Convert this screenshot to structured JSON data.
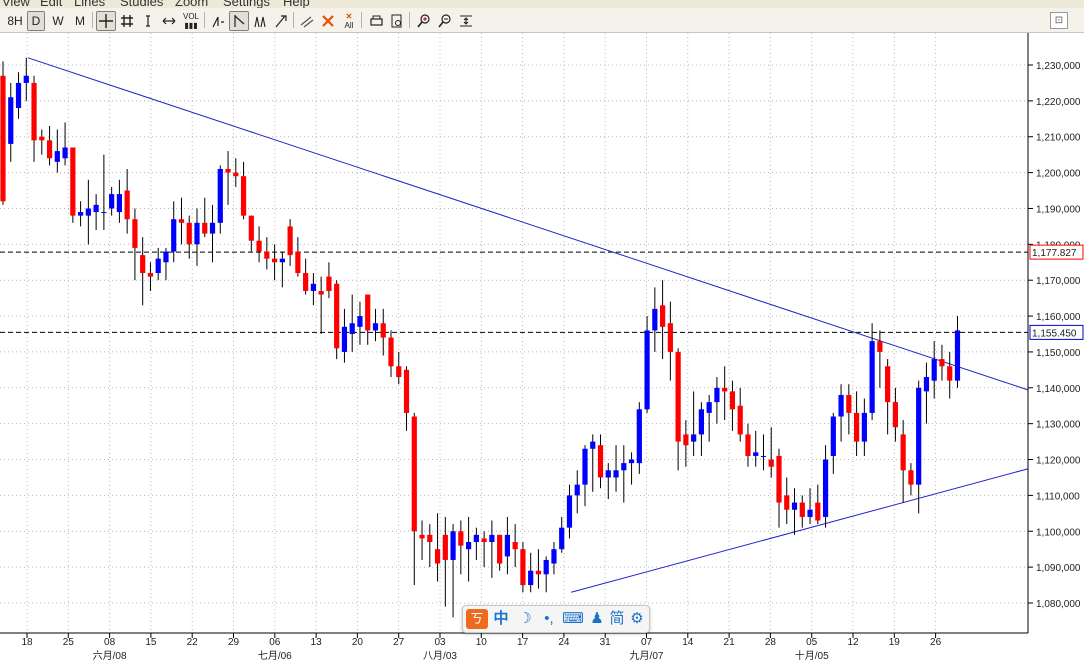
{
  "menu": {
    "items": [
      "View",
      "Edit",
      "Lines",
      "Studies",
      "Zoom",
      "Settings",
      "Help"
    ]
  },
  "toolbar": {
    "periods": [
      "8H",
      "D",
      "W",
      "M"
    ],
    "selected_period": "D",
    "vol_label": "VOL",
    "all_label": "All",
    "tools": [
      "crosshair-icon",
      "grid-icon",
      "cursor-icon",
      "scroll-icon",
      "volume-icon",
      "line-icon",
      "trendline-icon",
      "fork-icon",
      "fibonacci-icon",
      "pen-icon",
      "delete-icon",
      "delete-all-icon",
      "print-icon",
      "preview-icon",
      "zoom-in-icon",
      "zoom-out-icon",
      "fit-icon"
    ]
  },
  "chart_data": {
    "type": "candlestick",
    "up_color": "#0000ff",
    "down_color": "#ff0000",
    "ylim": [
      1074000,
      1236000
    ],
    "y_ticks": [
      "1,230,000",
      "1,220,000",
      "1,210,000",
      "1,200,000",
      "1,190,000",
      "1,180,000",
      "1,170,000",
      "1,160,000",
      "1,150,000",
      "1,140,000",
      "1,130,000",
      "1,120,000",
      "1,110,000",
      "1,100,000",
      "1,090,000",
      "1,080,000"
    ],
    "y_tick_values": [
      1230000,
      1220000,
      1210000,
      1200000,
      1190000,
      1180000,
      1170000,
      1160000,
      1150000,
      1140000,
      1130000,
      1120000,
      1110000,
      1100000,
      1090000,
      1080000
    ],
    "x_ticks": [
      "18",
      "25",
      "08",
      "15",
      "22",
      "29",
      "06",
      "13",
      "20",
      "27",
      "03",
      "10",
      "17",
      "24",
      "31",
      "07",
      "14",
      "21",
      "28",
      "05",
      "12",
      "19",
      "26"
    ],
    "month_labels": [
      "六月/08",
      "七月/06",
      "八月/03",
      "九月/07",
      "十月/05"
    ],
    "month_label_tick_index": [
      2,
      6,
      10,
      15,
      19
    ],
    "ref_lines": [
      {
        "label": "1,177.827",
        "value": 1177827,
        "color": "#ff0000"
      },
      {
        "label": "1,155.450",
        "value": 1155450,
        "color": "#0000cc"
      }
    ],
    "trendlines": [
      {
        "from": [
          0,
          1232000
        ],
        "to": [
          135,
          1135000
        ]
      },
      {
        "from": [
          70,
          1083000
        ],
        "to": [
          135,
          1121000
        ]
      }
    ],
    "candles": [
      {
        "o": 1227000,
        "h": 1231000,
        "l": 1191000,
        "c": 1192000
      },
      {
        "o": 1208000,
        "h": 1225000,
        "l": 1203000,
        "c": 1221000
      },
      {
        "o": 1218000,
        "h": 1228000,
        "l": 1215000,
        "c": 1225000
      },
      {
        "o": 1225000,
        "h": 1232000,
        "l": 1220000,
        "c": 1227000
      },
      {
        "o": 1225000,
        "h": 1227000,
        "l": 1203000,
        "c": 1209000
      },
      {
        "o": 1210000,
        "h": 1212000,
        "l": 1205000,
        "c": 1209000
      },
      {
        "o": 1209000,
        "h": 1213000,
        "l": 1202000,
        "c": 1204000
      },
      {
        "o": 1203000,
        "h": 1212000,
        "l": 1200000,
        "c": 1206000
      },
      {
        "o": 1204000,
        "h": 1214000,
        "l": 1202000,
        "c": 1207000
      },
      {
        "o": 1207000,
        "h": 1207000,
        "l": 1186000,
        "c": 1188000
      },
      {
        "o": 1188000,
        "h": 1192000,
        "l": 1185000,
        "c": 1189000
      },
      {
        "o": 1188000,
        "h": 1198000,
        "l": 1180000,
        "c": 1190000
      },
      {
        "o": 1189000,
        "h": 1194000,
        "l": 1184000,
        "c": 1191000
      },
      {
        "o": 1189000,
        "h": 1205000,
        "l": 1184000,
        "c": 1189000
      },
      {
        "o": 1190000,
        "h": 1196000,
        "l": 1188000,
        "c": 1194000
      },
      {
        "o": 1189000,
        "h": 1198000,
        "l": 1186000,
        "c": 1194000
      },
      {
        "o": 1195000,
        "h": 1201000,
        "l": 1183000,
        "c": 1187000
      },
      {
        "o": 1187000,
        "h": 1190000,
        "l": 1170000,
        "c": 1179000
      },
      {
        "o": 1177000,
        "h": 1182000,
        "l": 1163000,
        "c": 1172000
      },
      {
        "o": 1172000,
        "h": 1175000,
        "l": 1167000,
        "c": 1171000
      },
      {
        "o": 1172000,
        "h": 1179000,
        "l": 1170000,
        "c": 1176000
      },
      {
        "o": 1175000,
        "h": 1179000,
        "l": 1170000,
        "c": 1178000
      },
      {
        "o": 1178000,
        "h": 1192000,
        "l": 1175000,
        "c": 1187000
      },
      {
        "o": 1187000,
        "h": 1193000,
        "l": 1180000,
        "c": 1186000
      },
      {
        "o": 1186000,
        "h": 1188000,
        "l": 1176000,
        "c": 1180000
      },
      {
        "o": 1180000,
        "h": 1190000,
        "l": 1174000,
        "c": 1186000
      },
      {
        "o": 1186000,
        "h": 1193000,
        "l": 1182000,
        "c": 1183000
      },
      {
        "o": 1183000,
        "h": 1191000,
        "l": 1175000,
        "c": 1186000
      },
      {
        "o": 1186000,
        "h": 1202000,
        "l": 1183000,
        "c": 1201000
      },
      {
        "o": 1201000,
        "h": 1206000,
        "l": 1191000,
        "c": 1200000
      },
      {
        "o": 1200000,
        "h": 1204000,
        "l": 1196000,
        "c": 1199000
      },
      {
        "o": 1199000,
        "h": 1203000,
        "l": 1187000,
        "c": 1188000
      },
      {
        "o": 1188000,
        "h": 1188000,
        "l": 1178000,
        "c": 1181000
      },
      {
        "o": 1181000,
        "h": 1185000,
        "l": 1175000,
        "c": 1178000
      },
      {
        "o": 1178000,
        "h": 1182000,
        "l": 1173000,
        "c": 1176000
      },
      {
        "o": 1176000,
        "h": 1180000,
        "l": 1170000,
        "c": 1175000
      },
      {
        "o": 1175000,
        "h": 1178000,
        "l": 1168000,
        "c": 1176000
      },
      {
        "o": 1185000,
        "h": 1187000,
        "l": 1174000,
        "c": 1177000
      },
      {
        "o": 1178000,
        "h": 1182000,
        "l": 1171000,
        "c": 1172000
      },
      {
        "o": 1172000,
        "h": 1176000,
        "l": 1166000,
        "c": 1167000
      },
      {
        "o": 1167000,
        "h": 1172000,
        "l": 1163000,
        "c": 1169000
      },
      {
        "o": 1167000,
        "h": 1171000,
        "l": 1155000,
        "c": 1166000
      },
      {
        "o": 1171000,
        "h": 1175000,
        "l": 1165000,
        "c": 1167000
      },
      {
        "o": 1169000,
        "h": 1170000,
        "l": 1148000,
        "c": 1151000
      },
      {
        "o": 1150000,
        "h": 1162000,
        "l": 1147000,
        "c": 1157000
      },
      {
        "o": 1155000,
        "h": 1166000,
        "l": 1150000,
        "c": 1158000
      },
      {
        "o": 1157000,
        "h": 1164000,
        "l": 1152000,
        "c": 1160000
      },
      {
        "o": 1166000,
        "h": 1166000,
        "l": 1152000,
        "c": 1156000
      },
      {
        "o": 1156000,
        "h": 1162000,
        "l": 1153000,
        "c": 1158000
      },
      {
        "o": 1158000,
        "h": 1162000,
        "l": 1149000,
        "c": 1154000
      },
      {
        "o": 1154000,
        "h": 1156000,
        "l": 1143000,
        "c": 1146000
      },
      {
        "o": 1146000,
        "h": 1150000,
        "l": 1141000,
        "c": 1143000
      },
      {
        "o": 1145000,
        "h": 1146000,
        "l": 1128000,
        "c": 1133000
      },
      {
        "o": 1132000,
        "h": 1133000,
        "l": 1085000,
        "c": 1100000
      },
      {
        "o": 1099000,
        "h": 1103000,
        "l": 1092000,
        "c": 1098000
      },
      {
        "o": 1099000,
        "h": 1102000,
        "l": 1090000,
        "c": 1097000
      },
      {
        "o": 1095000,
        "h": 1105000,
        "l": 1086000,
        "c": 1091000
      },
      {
        "o": 1099000,
        "h": 1104000,
        "l": 1079000,
        "c": 1092000
      },
      {
        "o": 1092000,
        "h": 1102000,
        "l": 1076000,
        "c": 1100000
      },
      {
        "o": 1100000,
        "h": 1103000,
        "l": 1088000,
        "c": 1096000
      },
      {
        "o": 1095000,
        "h": 1104000,
        "l": 1086000,
        "c": 1097000
      },
      {
        "o": 1097000,
        "h": 1101000,
        "l": 1092000,
        "c": 1099000
      },
      {
        "o": 1098000,
        "h": 1100000,
        "l": 1090000,
        "c": 1097000
      },
      {
        "o": 1097000,
        "h": 1103000,
        "l": 1087000,
        "c": 1099000
      },
      {
        "o": 1099000,
        "h": 1099000,
        "l": 1089000,
        "c": 1091000
      },
      {
        "o": 1093000,
        "h": 1104000,
        "l": 1088000,
        "c": 1099000
      },
      {
        "o": 1097000,
        "h": 1102000,
        "l": 1090000,
        "c": 1095000
      },
      {
        "o": 1095000,
        "h": 1097000,
        "l": 1083000,
        "c": 1085000
      },
      {
        "o": 1085000,
        "h": 1094000,
        "l": 1083000,
        "c": 1089000
      },
      {
        "o": 1089000,
        "h": 1095000,
        "l": 1084000,
        "c": 1088000
      },
      {
        "o": 1088000,
        "h": 1093000,
        "l": 1083000,
        "c": 1092000
      },
      {
        "o": 1091000,
        "h": 1097000,
        "l": 1088000,
        "c": 1095000
      },
      {
        "o": 1095000,
        "h": 1104000,
        "l": 1094000,
        "c": 1101000
      },
      {
        "o": 1101000,
        "h": 1113000,
        "l": 1098000,
        "c": 1110000
      },
      {
        "o": 1110000,
        "h": 1117000,
        "l": 1105000,
        "c": 1113000
      },
      {
        "o": 1113000,
        "h": 1124000,
        "l": 1107000,
        "c": 1123000
      },
      {
        "o": 1123000,
        "h": 1127000,
        "l": 1111000,
        "c": 1125000
      },
      {
        "o": 1124000,
        "h": 1127000,
        "l": 1112000,
        "c": 1115000
      },
      {
        "o": 1115000,
        "h": 1119000,
        "l": 1109000,
        "c": 1117000
      },
      {
        "o": 1115000,
        "h": 1124000,
        "l": 1111000,
        "c": 1117000
      },
      {
        "o": 1117000,
        "h": 1124000,
        "l": 1108000,
        "c": 1119000
      },
      {
        "o": 1119000,
        "h": 1122000,
        "l": 1113000,
        "c": 1120000
      },
      {
        "o": 1119000,
        "h": 1136000,
        "l": 1116000,
        "c": 1134000
      },
      {
        "o": 1134000,
        "h": 1160000,
        "l": 1133000,
        "c": 1156000
      },
      {
        "o": 1156000,
        "h": 1168000,
        "l": 1150000,
        "c": 1162000
      },
      {
        "o": 1163000,
        "h": 1170000,
        "l": 1148000,
        "c": 1157000
      },
      {
        "o": 1158000,
        "h": 1164000,
        "l": 1142000,
        "c": 1150000
      },
      {
        "o": 1150000,
        "h": 1151000,
        "l": 1117000,
        "c": 1125000
      },
      {
        "o": 1127000,
        "h": 1131000,
        "l": 1118000,
        "c": 1124000
      },
      {
        "o": 1125000,
        "h": 1139000,
        "l": 1121000,
        "c": 1127000
      },
      {
        "o": 1127000,
        "h": 1136000,
        "l": 1121000,
        "c": 1134000
      },
      {
        "o": 1133000,
        "h": 1138000,
        "l": 1125000,
        "c": 1136000
      },
      {
        "o": 1136000,
        "h": 1143000,
        "l": 1130000,
        "c": 1140000
      },
      {
        "o": 1140000,
        "h": 1146000,
        "l": 1131000,
        "c": 1139000
      },
      {
        "o": 1139000,
        "h": 1142000,
        "l": 1128000,
        "c": 1134000
      },
      {
        "o": 1135000,
        "h": 1140000,
        "l": 1125000,
        "c": 1127000
      },
      {
        "o": 1127000,
        "h": 1130000,
        "l": 1118000,
        "c": 1121000
      },
      {
        "o": 1121000,
        "h": 1128000,
        "l": 1118000,
        "c": 1122000
      },
      {
        "o": 1121000,
        "h": 1127000,
        "l": 1117000,
        "c": 1121000
      },
      {
        "o": 1120000,
        "h": 1129000,
        "l": 1115000,
        "c": 1118000
      },
      {
        "o": 1121000,
        "h": 1123000,
        "l": 1101000,
        "c": 1108000
      },
      {
        "o": 1110000,
        "h": 1115000,
        "l": 1102000,
        "c": 1106000
      },
      {
        "o": 1106000,
        "h": 1112000,
        "l": 1099000,
        "c": 1108000
      },
      {
        "o": 1108000,
        "h": 1110000,
        "l": 1101000,
        "c": 1104000
      },
      {
        "o": 1104000,
        "h": 1112000,
        "l": 1102000,
        "c": 1106000
      },
      {
        "o": 1108000,
        "h": 1113000,
        "l": 1102000,
        "c": 1103000
      },
      {
        "o": 1104000,
        "h": 1124000,
        "l": 1101000,
        "c": 1120000
      },
      {
        "o": 1121000,
        "h": 1133000,
        "l": 1116000,
        "c": 1132000
      },
      {
        "o": 1132000,
        "h": 1141000,
        "l": 1125000,
        "c": 1138000
      },
      {
        "o": 1138000,
        "h": 1141000,
        "l": 1127000,
        "c": 1133000
      },
      {
        "o": 1133000,
        "h": 1139000,
        "l": 1121000,
        "c": 1125000
      },
      {
        "o": 1125000,
        "h": 1137000,
        "l": 1121000,
        "c": 1133000
      },
      {
        "o": 1133000,
        "h": 1158000,
        "l": 1131000,
        "c": 1153000
      },
      {
        "o": 1153000,
        "h": 1156000,
        "l": 1140000,
        "c": 1150000
      },
      {
        "o": 1146000,
        "h": 1148000,
        "l": 1127000,
        "c": 1136000
      },
      {
        "o": 1136000,
        "h": 1140000,
        "l": 1125000,
        "c": 1129000
      },
      {
        "o": 1127000,
        "h": 1131000,
        "l": 1108000,
        "c": 1117000
      },
      {
        "o": 1117000,
        "h": 1119000,
        "l": 1110000,
        "c": 1113000
      },
      {
        "o": 1113000,
        "h": 1142000,
        "l": 1105000,
        "c": 1140000
      },
      {
        "o": 1139000,
        "h": 1147000,
        "l": 1130000,
        "c": 1143000
      },
      {
        "o": 1142000,
        "h": 1153000,
        "l": 1137000,
        "c": 1148000
      },
      {
        "o": 1148000,
        "h": 1152000,
        "l": 1142000,
        "c": 1146000
      },
      {
        "o": 1146000,
        "h": 1150000,
        "l": 1137000,
        "c": 1142000
      },
      {
        "o": 1142000,
        "h": 1160000,
        "l": 1140000,
        "c": 1156000
      }
    ]
  },
  "ime_bar": {
    "items": [
      "中",
      "☽",
      "⌨",
      "简"
    ]
  }
}
